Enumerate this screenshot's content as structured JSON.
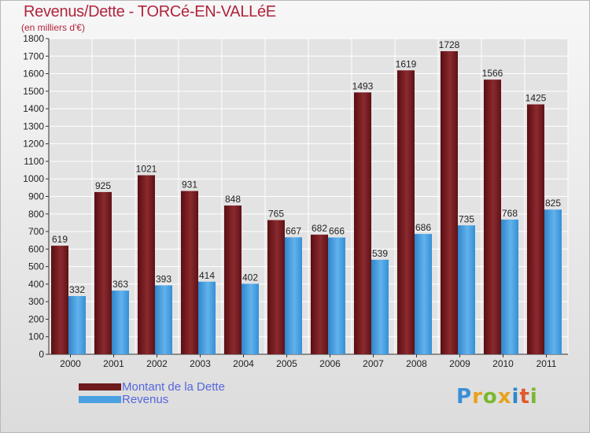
{
  "title": "Revenus/Dette - TORCé-EN-VALLéE",
  "subtitle": "(en milliers d'€)",
  "colors": {
    "debt": "#6e1a1e",
    "debt_light": "#9a3a3e",
    "revenue": "#3d94d8",
    "revenue_light": "#6cb8ee",
    "title": "#b0243c",
    "legend_text": "#5566dd"
  },
  "legend": [
    {
      "label": "Montant de la Dette",
      "color": "#6e1a1e"
    },
    {
      "label": "Revenus",
      "color": "#4aa0e0"
    }
  ],
  "logo": "Proxiti",
  "chart_data": {
    "type": "bar",
    "title": "Revenus/Dette - TORCé-EN-VALLéE",
    "subtitle": "(en milliers d'€)",
    "categories": [
      "2000",
      "2001",
      "2002",
      "2003",
      "2004",
      "2005",
      "2006",
      "2007",
      "2008",
      "2009",
      "2010",
      "2011"
    ],
    "series": [
      {
        "name": "Montant de la Dette",
        "values": [
          619,
          925,
          1021,
          931,
          848,
          765,
          682,
          1493,
          1619,
          1728,
          1566,
          1425
        ]
      },
      {
        "name": "Revenus",
        "values": [
          332,
          363,
          393,
          414,
          402,
          667,
          666,
          539,
          686,
          735,
          768,
          825
        ]
      }
    ],
    "ylim": [
      0,
      1800
    ],
    "yticks": [
      0,
      100,
      200,
      300,
      400,
      500,
      600,
      700,
      800,
      900,
      1000,
      1100,
      1200,
      1300,
      1400,
      1500,
      1600,
      1700,
      1800
    ],
    "grid": true,
    "legend_position": "bottom-left"
  }
}
